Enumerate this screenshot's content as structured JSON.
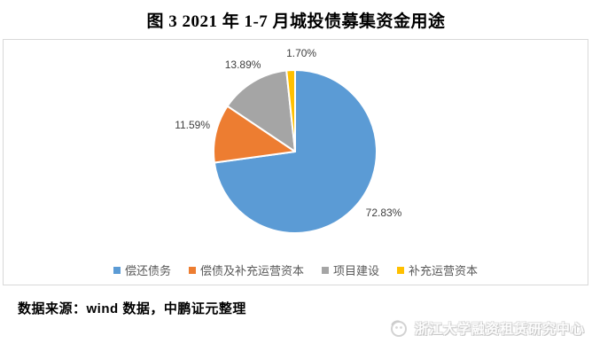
{
  "title": "图 3 2021 年 1-7 月城投债募集资金用途",
  "chart_data": {
    "type": "pie",
    "title": "图 3 2021 年 1-7 月城投债募集资金用途",
    "categories": [
      "偿还债务",
      "偿债及补充运营资本",
      "项目建设",
      "补充运营资本"
    ],
    "values": [
      72.83,
      11.59,
      13.89,
      1.7
    ],
    "labels": [
      "72.83%",
      "11.59%",
      "13.89%",
      "1.70%"
    ],
    "colors": [
      "#5B9BD5",
      "#ED7D31",
      "#A5A5A5",
      "#FFC000"
    ],
    "start_angle": "12-oclock-clockwise",
    "legend_position": "bottom",
    "label_color": "#404040",
    "legend_text_color": "#595959",
    "border_color": "#d9d9d9"
  },
  "source_note": "数据来源：wind 数据，中鹏证元整理",
  "watermark": {
    "icon": "research-center-logo-icon",
    "text": "浙江大学融资租赁研究中心"
  }
}
